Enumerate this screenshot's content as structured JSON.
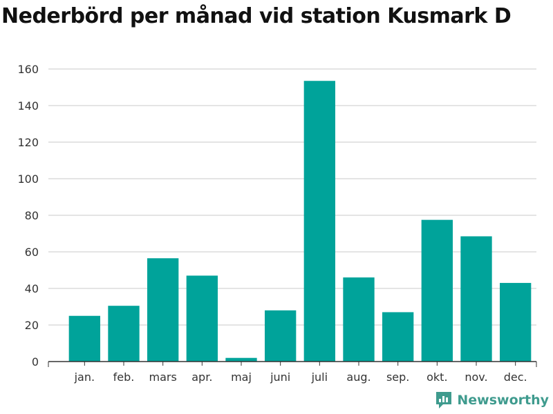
{
  "chart_data": {
    "type": "bar",
    "title": "Nederbörd per månad vid station Kusmark D",
    "categories": [
      "jan.",
      "feb.",
      "mars",
      "apr.",
      "maj",
      "juni",
      "juli",
      "aug.",
      "sep.",
      "okt.",
      "nov.",
      "dec."
    ],
    "values": [
      25,
      30.5,
      56.5,
      47,
      2,
      28,
      153.5,
      46,
      27,
      77.5,
      68.5,
      43
    ],
    "ylim": [
      0,
      160
    ],
    "yticks": [
      0,
      20,
      40,
      60,
      80,
      100,
      120,
      140,
      160
    ],
    "grid": true,
    "bar_color": "#00a39a",
    "grid_color": "#dcdcdc",
    "axis_color": "#333333"
  },
  "brand": {
    "name": "Newsworthy",
    "icon": "newsworthy-logo-icon",
    "color": "#3f9b8e"
  }
}
